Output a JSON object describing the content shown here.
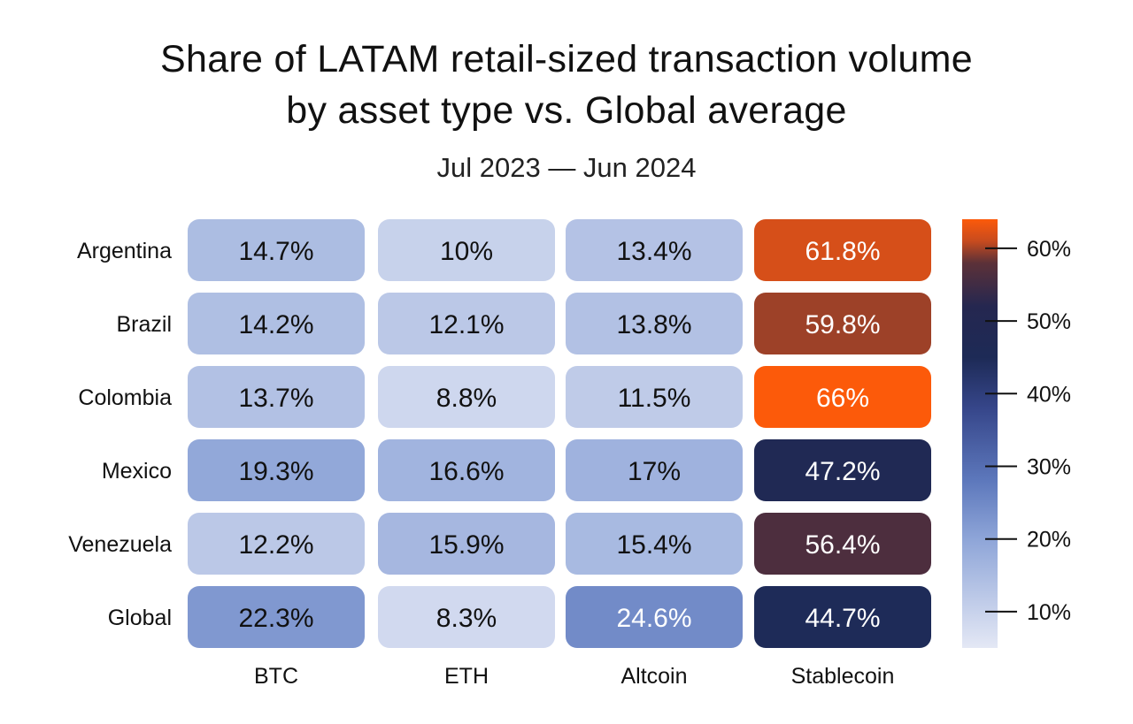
{
  "chart_data": {
    "type": "heatmap",
    "title_lines": [
      "Share of LATAM retail-sized transaction volume",
      "by asset type vs. Global average"
    ],
    "subtitle": "Jul 2023 — Jun 2024",
    "rows": [
      "Argentina",
      "Brazil",
      "Colombia",
      "Mexico",
      "Venezuela",
      "Global"
    ],
    "columns": [
      "BTC",
      "ETH",
      "Altcoin",
      "Stablecoin"
    ],
    "values": [
      [
        14.7,
        10,
        13.4,
        61.8
      ],
      [
        14.2,
        12.1,
        13.8,
        59.8
      ],
      [
        13.7,
        8.8,
        11.5,
        66
      ],
      [
        19.3,
        16.6,
        17,
        47.2
      ],
      [
        12.2,
        15.9,
        15.4,
        56.4
      ],
      [
        22.3,
        8.3,
        24.6,
        44.7
      ]
    ],
    "labels": [
      [
        "14.7%",
        "10%",
        "13.4%",
        "61.8%"
      ],
      [
        "14.2%",
        "12.1%",
        "13.8%",
        "59.8%"
      ],
      [
        "13.7%",
        "8.8%",
        "11.5%",
        "66%"
      ],
      [
        "19.3%",
        "16.6%",
        "17%",
        "47.2%"
      ],
      [
        "12.2%",
        "15.9%",
        "15.4%",
        "56.4%"
      ],
      [
        "22.3%",
        "8.3%",
        "24.6%",
        "44.7%"
      ]
    ],
    "colorbar": {
      "min": 5,
      "max": 64,
      "ticks": [
        10,
        20,
        30,
        40,
        50,
        60
      ],
      "tick_labels": [
        "10%",
        "20%",
        "30%",
        "40%",
        "50%",
        "60%"
      ],
      "stops": [
        {
          "value": 5,
          "color": "#e4e8f5"
        },
        {
          "value": 20,
          "color": "#8ea5d8"
        },
        {
          "value": 28,
          "color": "#5d78bc"
        },
        {
          "value": 38,
          "color": "#36468a"
        },
        {
          "value": 45,
          "color": "#1d2a56"
        },
        {
          "value": 52,
          "color": "#252750"
        },
        {
          "value": 58,
          "color": "#5c3138"
        },
        {
          "value": 61,
          "color": "#c84b1e"
        },
        {
          "value": 64,
          "color": "#fc5a0a"
        }
      ]
    }
  }
}
